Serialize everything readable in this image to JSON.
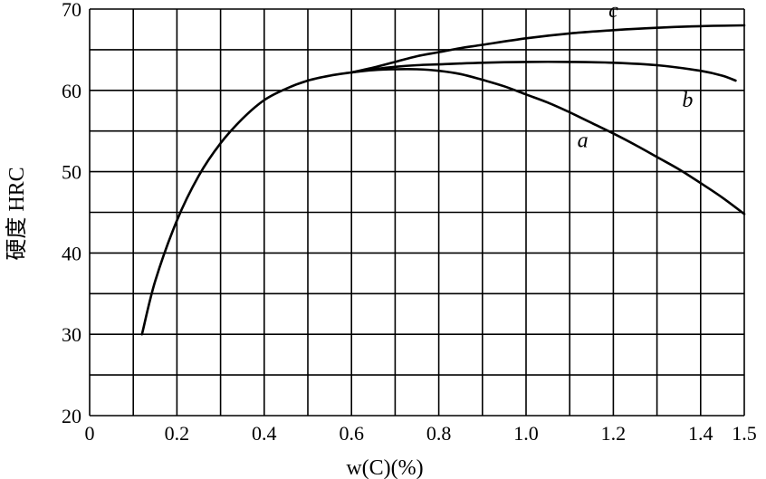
{
  "chart_data": {
    "type": "line",
    "title": "",
    "xlabel": "w(C)(%)",
    "ylabel": "硬度 HRC",
    "xlim": [
      0,
      1.5
    ],
    "ylim": [
      20,
      70
    ],
    "grid": true,
    "x_ticks": [
      0,
      0.2,
      0.4,
      0.6,
      0.8,
      1.0,
      1.2,
      1.4,
      1.5
    ],
    "x_tick_labels": [
      "0",
      "0.2",
      "0.4",
      "0.6",
      "0.8",
      "1.0",
      "1.2",
      "1.4",
      "1.5"
    ],
    "y_ticks": [
      20,
      30,
      40,
      50,
      60,
      70
    ],
    "y_tick_labels": [
      "20",
      "30",
      "40",
      "50",
      "60",
      "70"
    ],
    "series": [
      {
        "name": "a",
        "x": [
          0.12,
          0.15,
          0.2,
          0.25,
          0.3,
          0.35,
          0.4,
          0.45,
          0.5,
          0.55,
          0.6,
          0.65,
          0.7,
          0.75,
          0.8,
          0.85,
          0.9,
          0.95,
          1.0,
          1.05,
          1.1,
          1.15,
          1.2,
          1.25,
          1.3,
          1.35,
          1.4,
          1.45,
          1.5
        ],
        "y": [
          30,
          36.5,
          44,
          49.5,
          53.5,
          56.5,
          58.8,
          60.2,
          61.2,
          61.8,
          62.2,
          62.5,
          62.6,
          62.6,
          62.4,
          62.0,
          61.3,
          60.5,
          59.5,
          58.5,
          57.3,
          56.0,
          54.7,
          53.3,
          51.8,
          50.3,
          48.6,
          46.8,
          44.8
        ]
      },
      {
        "name": "b",
        "x": [
          0.6,
          0.65,
          0.7,
          0.75,
          0.8,
          0.9,
          1.0,
          1.1,
          1.2,
          1.3,
          1.4,
          1.45,
          1.48
        ],
        "y": [
          62.2,
          62.6,
          62.9,
          63.1,
          63.2,
          63.4,
          63.5,
          63.5,
          63.4,
          63.1,
          62.4,
          61.8,
          61.2
        ]
      },
      {
        "name": "c",
        "x": [
          0.6,
          0.65,
          0.7,
          0.75,
          0.8,
          0.85,
          0.9,
          1.0,
          1.1,
          1.2,
          1.3,
          1.4,
          1.5
        ],
        "y": [
          62.2,
          62.8,
          63.5,
          64.2,
          64.7,
          65.2,
          65.6,
          66.4,
          67.0,
          67.4,
          67.7,
          67.9,
          68.0
        ]
      }
    ],
    "series_labels": [
      {
        "text": "a",
        "x": 1.13,
        "y": 53
      },
      {
        "text": "b",
        "x": 1.37,
        "y": 58
      },
      {
        "text": "c",
        "x": 1.2,
        "y": 69
      }
    ]
  }
}
